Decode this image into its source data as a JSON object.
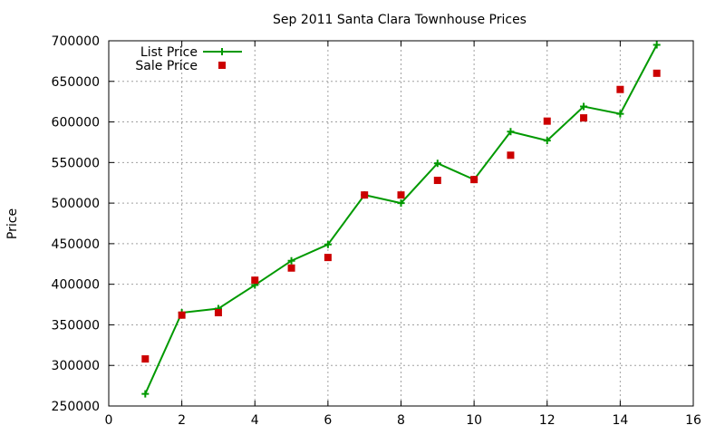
{
  "chart_data": {
    "type": "line",
    "title": "Sep 2011 Santa Clara Townhouse Prices",
    "xlabel": "",
    "ylabel": "Price",
    "xlim": [
      0,
      16
    ],
    "ylim": [
      250000,
      700000
    ],
    "xticks": [
      0,
      2,
      4,
      6,
      8,
      10,
      12,
      14,
      16
    ],
    "yticks": [
      250000,
      300000,
      350000,
      400000,
      450000,
      500000,
      550000,
      600000,
      650000,
      700000
    ],
    "grid": true,
    "legend_position": "top-left",
    "series": [
      {
        "name": "List Price",
        "style": "linespoints",
        "marker": "plus",
        "color": "#009900",
        "x": [
          1,
          2,
          3,
          4,
          5,
          6,
          7,
          8,
          9,
          10,
          11,
          12,
          13,
          14,
          15
        ],
        "y": [
          265000,
          365000,
          370000,
          399000,
          429000,
          449000,
          510000,
          500000,
          549000,
          529000,
          588000,
          577000,
          619000,
          610000,
          695000
        ]
      },
      {
        "name": "Sale Price",
        "style": "points",
        "marker": "square",
        "color": "#cc0000",
        "x": [
          1,
          2,
          3,
          4,
          5,
          6,
          7,
          8,
          9,
          10,
          11,
          12,
          13,
          14,
          15
        ],
        "y": [
          308000,
          362000,
          365000,
          405000,
          420000,
          433000,
          510000,
          510000,
          528000,
          529000,
          559000,
          601000,
          605000,
          640000,
          660000
        ]
      }
    ]
  }
}
